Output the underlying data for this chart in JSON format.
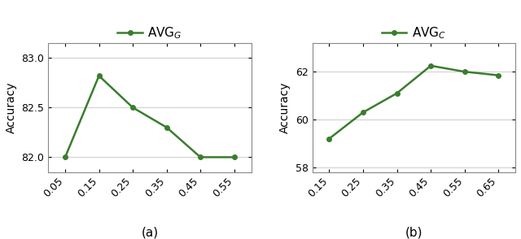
{
  "plot_a": {
    "x": [
      0.05,
      0.15,
      0.25,
      0.35,
      0.45,
      0.55
    ],
    "y": [
      82.0,
      82.82,
      82.5,
      82.3,
      82.0,
      82.0
    ],
    "legend_label": "AVG$_G$",
    "ylabel": "Accuracy",
    "ylim": [
      81.85,
      83.15
    ],
    "yticks": [
      82.0,
      82.5,
      83.0
    ],
    "ytick_labels": [
      "82.0",
      "82.5",
      "83.0"
    ],
    "xticks": [
      0.05,
      0.15,
      0.25,
      0.35,
      0.45,
      0.55
    ],
    "xtick_labels": [
      "0.05",
      "0.15",
      "0.25",
      "0.35",
      "0.45",
      "0.55"
    ],
    "sublabel": "(a)"
  },
  "plot_b": {
    "x": [
      0.15,
      0.25,
      0.35,
      0.45,
      0.55,
      0.65
    ],
    "y": [
      59.2,
      60.3,
      61.1,
      62.25,
      62.0,
      61.85
    ],
    "legend_label": "AVG$_C$",
    "ylabel": "Accuracy",
    "ylim": [
      57.8,
      63.2
    ],
    "yticks": [
      58,
      60,
      62
    ],
    "ytick_labels": [
      "58",
      "60",
      "62"
    ],
    "xticks": [
      0.15,
      0.25,
      0.35,
      0.45,
      0.55,
      0.65
    ],
    "xtick_labels": [
      "0.15",
      "0.25",
      "0.35",
      "0.45",
      "0.55",
      "0.65"
    ],
    "sublabel": "(b)"
  },
  "line_color": "#3a7d2e",
  "marker": "o",
  "markersize": 4,
  "linewidth": 1.8,
  "bg_color": "#ffffff",
  "grid_color": "#cccccc",
  "figsize": [
    6.4,
    2.94
  ],
  "dpi": 100
}
